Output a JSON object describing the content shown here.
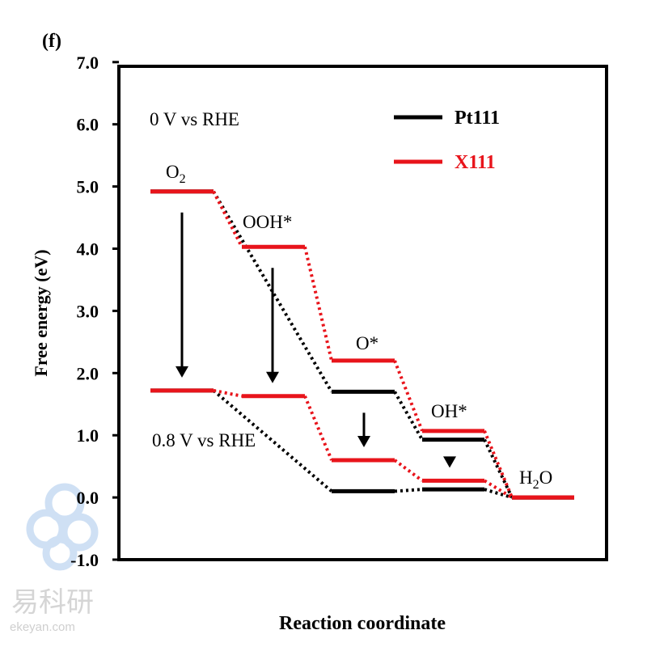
{
  "panel_label": "(f)",
  "watermark": {
    "name": "易科研",
    "site": "ekeyan.com"
  },
  "chart_data": {
    "type": "line",
    "subtype": "free-energy-diagram",
    "title": "",
    "xlabel": "Reaction coordinate",
    "ylabel": "Free energy (eV)",
    "ylim": [
      -1.0,
      7.0
    ],
    "yticks": [
      "7.0",
      "6.0",
      "5.0",
      "4.0",
      "3.0",
      "2.0",
      "1.0",
      "0.0",
      "-1.0"
    ],
    "ytick_values": [
      7,
      6,
      5,
      4,
      3,
      2,
      1,
      0,
      -1
    ],
    "grid": false,
    "legend_position": "top-right",
    "steps": [
      "O2",
      "OOH*",
      "O*",
      "OH*",
      "H2O"
    ],
    "step_labels": {
      "o2": "O",
      "o2_sub": "2",
      "ooh": "OOH*",
      "o": "O*",
      "oh": "OH*",
      "h2o_h": "H",
      "h2o_sub": "2",
      "h2o_o": "O"
    },
    "potential_labels": {
      "top": "0 V vs RHE",
      "bottom": "0.8 V vs RHE"
    },
    "series": [
      {
        "name": "Pt111",
        "potential": "0 V",
        "color": "#000000",
        "values": [
          4.92,
          null,
          1.7,
          0.93,
          0.0
        ]
      },
      {
        "name": "X111",
        "potential": "0 V",
        "color": "#e8141b",
        "values": [
          4.92,
          4.03,
          2.2,
          1.07,
          0.0
        ]
      },
      {
        "name": "Pt111",
        "potential": "0.8 V",
        "color": "#000000",
        "values": [
          1.72,
          null,
          0.1,
          0.13,
          0.0
        ]
      },
      {
        "name": "X111",
        "potential": "0.8 V",
        "color": "#e8141b",
        "values": [
          1.72,
          1.63,
          0.6,
          0.27,
          0.0
        ]
      }
    ],
    "legend": [
      {
        "name": "Pt111",
        "color": "#000000"
      },
      {
        "name": "X111",
        "color": "#e8141b"
      }
    ],
    "annotations": [
      "downward arrows from 0 V levels to 0.8 V levels for O2, OOH*, O* and OH*"
    ]
  }
}
